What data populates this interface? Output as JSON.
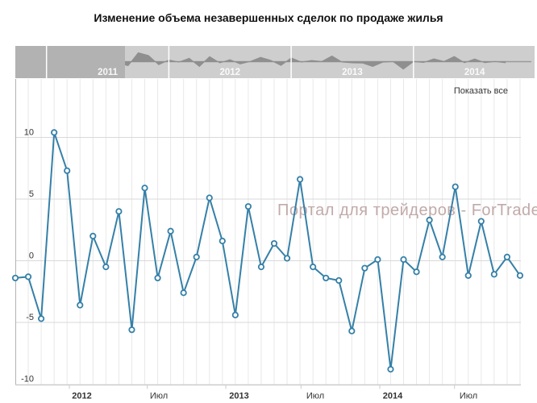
{
  "title": "Изменение объема незавершенных сделок по продаже жилья",
  "show_all_label": "Показать все",
  "watermark": "Портал для трейдеров - ForTrader.ru",
  "colors": {
    "series": "#3580a8",
    "marker_fill": "#ffffff",
    "navigator_bg": "#cecece",
    "navigator_mask": "#b2b2b2",
    "navigator_series": "#8f8f8f",
    "navigator_divider": "#ffffff",
    "navigator_year_label": "#ffffff",
    "watermark": "#bfa6a6",
    "grid_vertical": "#e8e8e8",
    "grid_horizontal": "#d9d9d9",
    "axis_line": "#b3b3b3",
    "x_axis_line": "#cccccc",
    "label_text": "#333333"
  },
  "navigator": {
    "year_labels": [
      "2011",
      "2012",
      "2013",
      "2014"
    ]
  },
  "x_axis": {
    "labels": [
      "2012",
      "Июл",
      "2013",
      "Июл",
      "2014",
      "Июл"
    ]
  },
  "y_axis": {
    "labels": [
      "10",
      "5",
      "0",
      "-5",
      "-10"
    ],
    "tick_values": [
      10,
      5,
      0,
      -5,
      -10
    ]
  },
  "chart_data": {
    "type": "line",
    "title": "Изменение объема незавершенных сделок по продаже жилья",
    "xlabel": "",
    "ylabel": "",
    "ylim": [
      -10,
      10
    ],
    "grid": true,
    "legend": false,
    "x": [
      "2011-07",
      "2011-08",
      "2011-09",
      "2011-10",
      "2011-11",
      "2011-12",
      "2012-01",
      "2012-02",
      "2012-03",
      "2012-04",
      "2012-05",
      "2012-06",
      "2012-07",
      "2012-08",
      "2012-09",
      "2012-10",
      "2012-11",
      "2012-12",
      "2013-01",
      "2013-02",
      "2013-03",
      "2013-04",
      "2013-05",
      "2013-06",
      "2013-07",
      "2013-08",
      "2013-09",
      "2013-10",
      "2013-11",
      "2013-12",
      "2014-01",
      "2014-02",
      "2014-03",
      "2014-04",
      "2014-05",
      "2014-06",
      "2014-07",
      "2014-08",
      "2014-09",
      "2014-10"
    ],
    "values": [
      -1.4,
      -1.3,
      -4.7,
      10.4,
      7.3,
      -3.6,
      2.0,
      -0.5,
      4.0,
      -5.6,
      5.9,
      -1.4,
      2.4,
      -2.6,
      0.3,
      5.1,
      1.6,
      -4.4,
      4.4,
      -0.5,
      1.4,
      0.2,
      6.6,
      -0.5,
      -1.4,
      -1.6,
      -5.7,
      -0.6,
      0.1,
      -8.8,
      0.1,
      -0.9,
      3.3,
      0.3,
      6.0,
      -1.2,
      3.2,
      -1.1,
      0.3,
      -1.2
    ]
  }
}
